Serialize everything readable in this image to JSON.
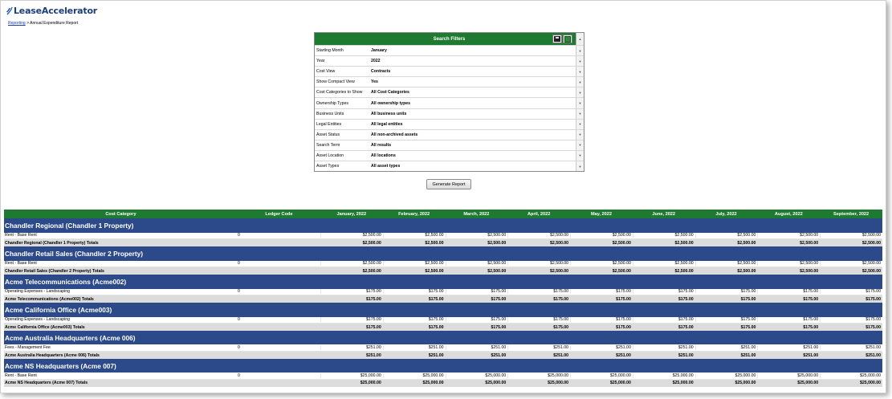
{
  "app": {
    "logo_text": "LeaseAccelerator"
  },
  "breadcrumb": {
    "link": "Reporting",
    "separator": " > ",
    "current": "Annual Expenditure Report"
  },
  "filters": {
    "title": "Search Filters",
    "rows": [
      {
        "label": "Starting Month",
        "value": "January"
      },
      {
        "label": "Year",
        "value": "2022"
      },
      {
        "label": "Cost View",
        "value": "Contracts"
      },
      {
        "label": "Show Compact View",
        "value": "Yes"
      },
      {
        "label": "Cost Categories to Show",
        "value": "All Cost Categories"
      },
      {
        "label": "Ownership Types",
        "value": "All ownership types"
      },
      {
        "label": "Business Units",
        "value": "All business units"
      },
      {
        "label": "Legal Entities",
        "value": "All legal entities"
      },
      {
        "label": "Asset Status",
        "value": "All non-archived assets"
      },
      {
        "label": "Search Term",
        "value": "All results"
      },
      {
        "label": "Asset Location",
        "value": "All locations"
      },
      {
        "label": "Asset Types",
        "value": "All asset types"
      }
    ]
  },
  "generate_button": "Generate Report",
  "report": {
    "columns": [
      "Cost Category",
      "Ledger Code",
      "January, 2022",
      "February, 2022",
      "March, 2022",
      "April, 2022",
      "May, 2022",
      "June, 2022",
      "July, 2022",
      "August, 2022",
      "September, 2022"
    ],
    "groups": [
      {
        "name": "Chandler Regional (Chandler 1 Property)",
        "detail": {
          "category": "Rent - Base Rent",
          "ledger": "0",
          "amount": "$2,500.00"
        },
        "total": {
          "label": "Chandler Regional (Chandler 1 Property) Totals",
          "amount": "$2,500.00"
        }
      },
      {
        "name": "Chandler Retail Sales (Chandler 2 Property)",
        "detail": {
          "category": "Rent - Base Rent",
          "ledger": "0",
          "amount": "$2,500.00"
        },
        "total": {
          "label": "Chandler Retail Sales (Chandler 2 Property) Totals",
          "amount": "$2,500.00"
        }
      },
      {
        "name": "Acme Telecommunications (Acme002)",
        "detail": {
          "category": "Operating Expenses - Landscaping",
          "ledger": "0",
          "amount": "$175.00"
        },
        "total": {
          "label": "Acme Telecommunications (Acme002) Totals",
          "amount": "$175.00"
        }
      },
      {
        "name": "Acme California Office (Acme003)",
        "detail": {
          "category": "Operating Expenses - Landscaping",
          "ledger": "0",
          "amount": "$175.00"
        },
        "total": {
          "label": "Acme California Office (Acme003) Totals",
          "amount": "$175.00"
        }
      },
      {
        "name": "Acme Australia Headquarters (Acme 006)",
        "detail": {
          "category": "Fees - Management Fee",
          "ledger": "0",
          "amount": "$251.00"
        },
        "total": {
          "label": "Acme Australia Headquarters (Acme 006) Totals",
          "amount": "$251.00"
        }
      },
      {
        "name": "Acme NS Headquarters (Acme 007)",
        "detail": {
          "category": "Rent - Base Rent",
          "ledger": "0",
          "amount": "$25,000.00"
        },
        "total": {
          "label": "Acme NS Headquarters (Acme 007) Totals",
          "amount": "$25,000.00"
        }
      }
    ]
  },
  "icons": {
    "save": "save-disk-icon",
    "export": "excel-export-icon",
    "dropdown": "dropdown-arrow-icon"
  },
  "colors": {
    "header_green": "#1d7a30",
    "group_blue": "#2c4a8a",
    "total_gray": "#dcdcdc",
    "link_blue": "#1a3da8"
  }
}
